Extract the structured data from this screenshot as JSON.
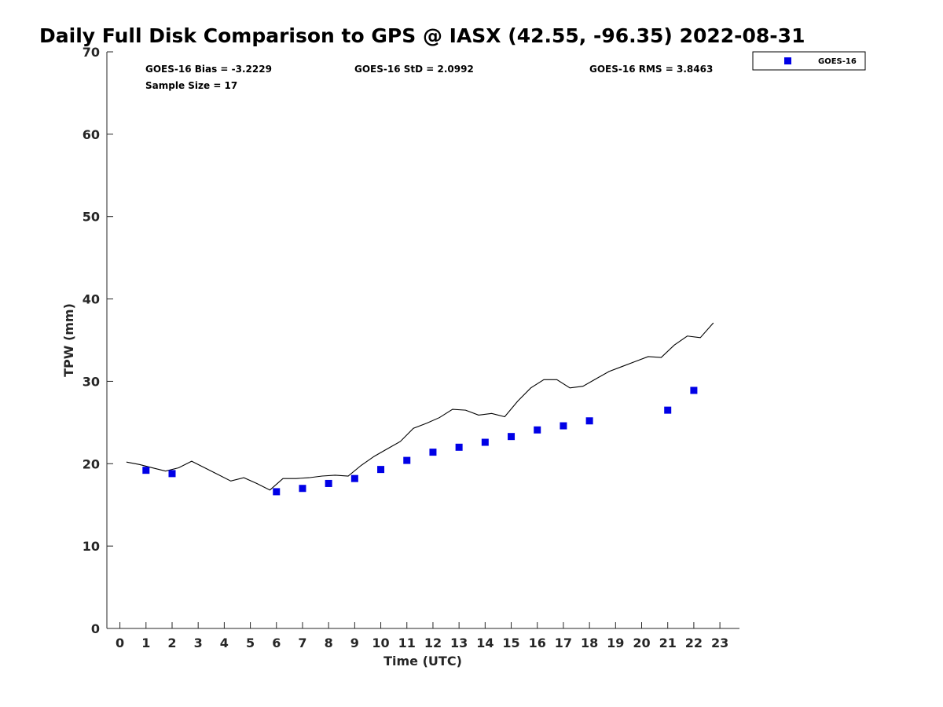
{
  "chart_data": {
    "type": "scatter",
    "title": "Daily Full Disk Comparison to GPS @ IASX (42.55, -96.35) 2022-08-31",
    "xlabel": "Time (UTC)",
    "ylabel": "TPW (mm)",
    "xlim": [
      -0.5,
      23.75
    ],
    "ylim": [
      0,
      70
    ],
    "xticks": [
      "0",
      "1",
      "2",
      "3",
      "4",
      "5",
      "6",
      "7",
      "8",
      "9",
      "10",
      "11",
      "12",
      "13",
      "14",
      "15",
      "16",
      "17",
      "18",
      "19",
      "20",
      "21",
      "22",
      "23"
    ],
    "yticks": [
      "0",
      "10",
      "20",
      "30",
      "40",
      "50",
      "60",
      "70"
    ],
    "grid": false,
    "legend": {
      "position": "top-right",
      "entries": [
        "GOES-16"
      ]
    },
    "stats": {
      "bias": "GOES-16 Bias = -3.2229",
      "std": "GOES-16 StD = 2.0992",
      "rms": "GOES-16 RMS = 3.8463",
      "sample": "Sample Size = 17"
    },
    "series": [
      {
        "name": "GOES-16",
        "kind": "scatter",
        "color": "#0000e6",
        "x": [
          1,
          2,
          6,
          7,
          8,
          9,
          10,
          11,
          12,
          13,
          14,
          15,
          16,
          17,
          18,
          21,
          22
        ],
        "y": [
          19.2,
          18.8,
          16.6,
          17.0,
          17.6,
          18.2,
          19.3,
          20.4,
          21.4,
          22.0,
          22.6,
          23.3,
          24.1,
          24.6,
          25.2,
          26.5,
          28.9
        ]
      },
      {
        "kind": "line",
        "color": "#000000",
        "x": [
          0.25,
          0.75,
          1.25,
          1.75,
          2.25,
          2.75,
          3.25,
          3.75,
          4.25,
          4.75,
          5.25,
          5.75,
          6.25,
          6.75,
          7.25,
          7.75,
          8.25,
          8.75,
          9.25,
          9.75,
          10.25,
          10.75,
          11.25,
          11.75,
          12.25,
          12.75,
          13.25,
          13.75,
          14.25,
          14.75,
          15.25,
          15.75,
          16.25,
          16.75,
          17.25,
          17.75,
          18.25,
          18.75,
          19.25,
          19.75,
          20.25,
          20.75,
          21.25,
          21.75,
          22.25,
          22.75
        ],
        "y": [
          20.2,
          19.9,
          19.5,
          19.1,
          19.5,
          20.3,
          19.5,
          18.7,
          17.9,
          18.3,
          17.6,
          16.8,
          18.2,
          18.2,
          18.3,
          18.5,
          18.6,
          18.5,
          19.8,
          20.9,
          21.8,
          22.7,
          24.3,
          24.9,
          25.6,
          26.6,
          26.5,
          25.9,
          26.1,
          25.7,
          27.6,
          29.2,
          30.2,
          30.2,
          29.2,
          29.4,
          30.3,
          31.2,
          31.8,
          32.4,
          33.0,
          32.9,
          34.4,
          35.5,
          35.3,
          37.1
        ]
      }
    ]
  }
}
